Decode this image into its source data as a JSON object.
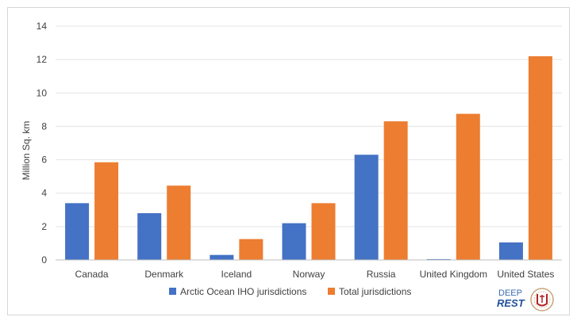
{
  "chart_data": {
    "type": "bar",
    "title": "",
    "xlabel": "",
    "ylabel": "Million Sq. km",
    "ylim": [
      0,
      14
    ],
    "yticks": [
      0,
      2,
      4,
      6,
      8,
      10,
      12,
      14
    ],
    "grid": true,
    "legend_position": "bottom",
    "categories": [
      "Canada",
      "Denmark",
      "Iceland",
      "Norway",
      "Russia",
      "United Kingdom",
      "United States"
    ],
    "series": [
      {
        "name": "Arctic Ocean IHO jurisdictions",
        "color": "#4472c4",
        "values": [
          3.4,
          2.8,
          0.3,
          2.2,
          6.3,
          0.05,
          1.05
        ]
      },
      {
        "name": "Total jurisdictions",
        "color": "#ed7d31",
        "values": [
          5.85,
          4.45,
          1.25,
          3.4,
          8.3,
          8.75,
          12.2
        ]
      }
    ]
  },
  "logos": {
    "deep_rest": {
      "line1": "DEEP",
      "line2": "REST"
    },
    "university_seal": "seal-icon"
  }
}
